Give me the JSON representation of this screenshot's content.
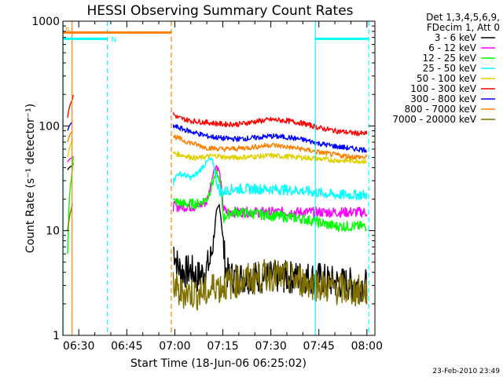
{
  "chart_data": {
    "type": "line",
    "title": "HESSI Observing Summary Count Rates",
    "xlabel": "Start Time (18-Jun-06 06:25:02)",
    "ylabel": "Count Rate (s⁻¹ detector⁻¹)",
    "y_scale": "log",
    "ylim": [
      1,
      1000
    ],
    "xlim": [
      "06:25:02",
      "08:02:30"
    ],
    "grid": false,
    "legend_position": "right",
    "x_ticks": [
      "06:30",
      "06:45",
      "07:00",
      "07:15",
      "07:30",
      "07:45",
      "08:00"
    ],
    "x_tick_minutes": [
      390,
      405,
      420,
      435,
      450,
      465,
      480
    ],
    "y_ticks": [
      "1",
      "10",
      "100",
      "1000"
    ],
    "y_tick_values": [
      1,
      10,
      100,
      1000
    ],
    "legend_header": [
      "Det 1,3,4,5,6,9,",
      "FDecim 1, Att 0"
    ],
    "series": [
      {
        "name": "3 - 6 keV",
        "color": "#000000",
        "x": [
          386.5,
          387,
          388,
          388.5,
          419.5,
          421,
          423,
          425,
          427,
          429,
          431,
          432,
          433,
          434,
          434.6,
          435.2,
          436,
          437,
          440,
          450,
          460,
          465,
          470,
          480
        ],
        "y": [
          38,
          40,
          42,
          45,
          7,
          4.5,
          4,
          4.2,
          3.6,
          4,
          5,
          8,
          14,
          18,
          12,
          7,
          4.2,
          3.6,
          3.6,
          3.6,
          3.6,
          3.5,
          3.2,
          3.0
        ]
      },
      {
        "name": "6 - 12 keV",
        "color": "#ff00ff",
        "x": [
          386.5,
          387,
          388,
          388.5,
          419.5,
          423,
          427,
          430,
          431,
          432,
          433,
          434,
          434.6,
          435.3,
          436,
          438,
          440,
          450,
          460,
          465,
          470,
          480
        ],
        "y": [
          45,
          48,
          50,
          52,
          17,
          17,
          17,
          19,
          25,
          36,
          42,
          36,
          24,
          16,
          15,
          15,
          15,
          15,
          15,
          15,
          15,
          15
        ]
      },
      {
        "name": "12 - 25 keV",
        "color": "#00ff00",
        "x": [
          386.5,
          387,
          388,
          388.5,
          419.5,
          423,
          427,
          430,
          431,
          432,
          433,
          434,
          434.6,
          435.3,
          436,
          438,
          440,
          450,
          460,
          465,
          470,
          480
        ],
        "y": [
          6,
          20,
          40,
          60,
          19,
          18,
          18,
          20,
          24,
          30,
          36,
          30,
          20,
          13,
          14,
          15,
          15,
          14,
          13,
          12,
          11,
          11
        ]
      },
      {
        "name": "25 - 50 keV",
        "color": "#00ffff",
        "x": [
          419.5,
          421,
          423,
          425,
          427,
          429,
          431,
          432,
          433,
          434,
          435,
          436,
          438,
          440,
          450,
          460,
          465,
          470,
          480
        ],
        "y": [
          30,
          35,
          34,
          32,
          35,
          42,
          48,
          45,
          30,
          24,
          23,
          24,
          25,
          25,
          25,
          24,
          23,
          22,
          22
        ]
      },
      {
        "name": "50 - 100 keV",
        "color": "#e0d000",
        "x": [
          386.5,
          387,
          388,
          419.5,
          423,
          427,
          430,
          433,
          436,
          440,
          450,
          460,
          470,
          480
        ],
        "y": [
          50,
          60,
          75,
          55,
          52,
          49,
          51,
          52,
          50,
          50,
          52,
          50,
          47,
          46
        ]
      },
      {
        "name": "100 - 300 keV",
        "color": "#ff0000",
        "x": [
          386.5,
          387,
          388,
          388.5,
          419.5,
          421,
          425,
          430,
          435,
          440,
          445,
          450,
          455,
          460,
          465,
          470,
          475,
          480
        ],
        "y": [
          120,
          150,
          180,
          210,
          130,
          120,
          112,
          108,
          104,
          104,
          110,
          115,
          112,
          106,
          96,
          90,
          86,
          84
        ]
      },
      {
        "name": "300 - 800 keV",
        "color": "#0000ff",
        "x": [
          386.5,
          387,
          388,
          419.5,
          423,
          427,
          430,
          435,
          440,
          445,
          450,
          455,
          460,
          465,
          470,
          475,
          480
        ],
        "y": [
          90,
          100,
          110,
          100,
          92,
          85,
          80,
          76,
          75,
          77,
          80,
          78,
          74,
          68,
          64,
          61,
          59
        ]
      },
      {
        "name": "800 - 7000 keV",
        "color": "#ff8000",
        "x": [
          386.5,
          387,
          388,
          419.5,
          423,
          427,
          430,
          435,
          440,
          445,
          450,
          455,
          460,
          465,
          470,
          475,
          480
        ],
        "y": [
          70,
          80,
          90,
          80,
          72,
          66,
          62,
          60,
          61,
          63,
          66,
          63,
          60,
          56,
          53,
          51,
          50
        ]
      },
      {
        "name": "7000 - 20000 keV",
        "color": "#807000",
        "x": [
          386.5,
          387,
          388,
          419.5,
          421,
          423,
          427,
          431,
          433,
          434,
          435,
          440,
          445,
          450,
          455,
          460,
          465,
          470,
          480
        ],
        "y": [
          10,
          13,
          18,
          3.3,
          2.5,
          2.6,
          2.5,
          2.6,
          3.2,
          2.8,
          3.0,
          3.3,
          3.5,
          3.8,
          3.5,
          3.3,
          3.0,
          2.8,
          2.6
        ]
      }
    ],
    "annotations": [
      {
        "label": "S",
        "color": "#ff8000",
        "x_start": 385.1,
        "x_end": 418.9,
        "y": 780
      },
      {
        "label": "N",
        "color": "#00ffff",
        "x_start": 385.1,
        "x_end": 398.9,
        "y": 680
      },
      {
        "label": "",
        "color": "#00ffff",
        "x_start": 463.9,
        "x_end": 480.6,
        "y": 680
      }
    ],
    "vlines": [
      {
        "x": 385.1,
        "color": "#00ffff",
        "style": "solid"
      },
      {
        "x": 387.9,
        "color": "#ff8000",
        "style": "solid"
      },
      {
        "x": 398.9,
        "color": "#00ffff",
        "style": "dashed"
      },
      {
        "x": 418.9,
        "color": "#ff8000",
        "style": "dashed"
      },
      {
        "x": 463.9,
        "color": "#00ffff",
        "style": "solid"
      },
      {
        "x": 480.6,
        "color": "#00ffff",
        "style": "dashed"
      }
    ]
  },
  "footer": {
    "timestamp": "23-Feb-2010 23:49"
  }
}
